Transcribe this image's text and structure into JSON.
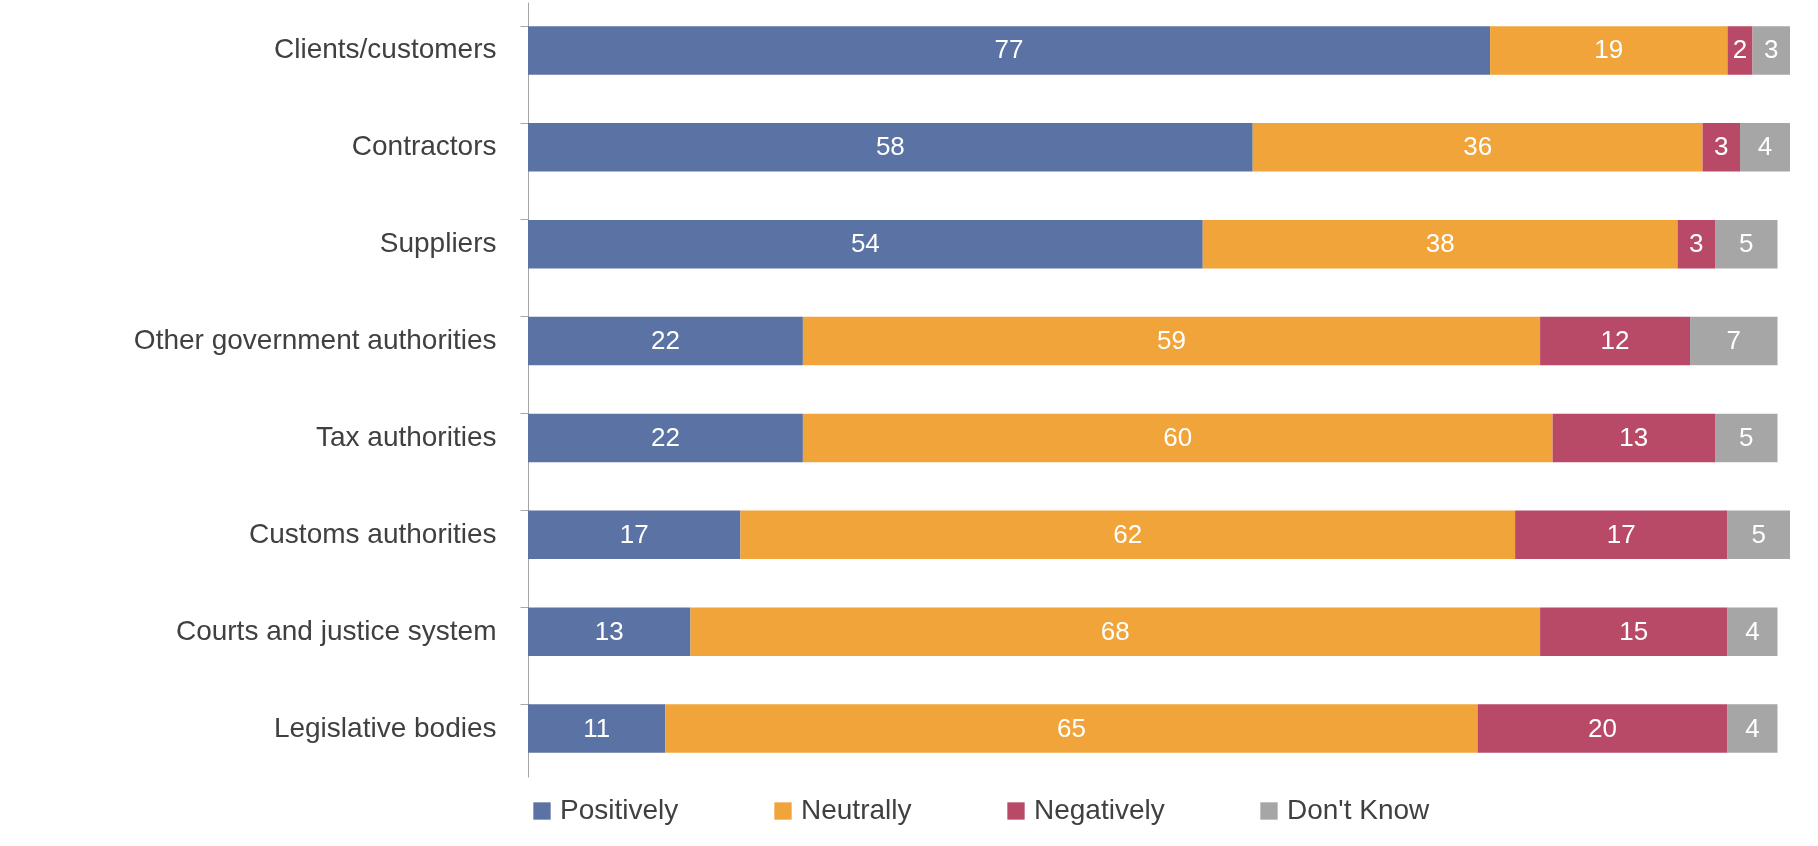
{
  "chart_data": {
    "type": "bar",
    "orientation": "horizontal",
    "stacked": true,
    "data_labels": true,
    "legend": "bottom",
    "categories": [
      "Clients/customers",
      "Contractors",
      "Suppliers",
      "Other government authorities",
      "Tax authorities",
      "Customs authorities",
      "Courts and justice system",
      "Legislative bodies"
    ],
    "series": [
      {
        "name": "Positively",
        "color": "#5b72a4",
        "values": [
          77,
          58,
          54,
          22,
          22,
          17,
          13,
          11
        ]
      },
      {
        "name": "Neutrally",
        "color": "#f0a43a",
        "values": [
          19,
          36,
          38,
          59,
          60,
          62,
          68,
          65
        ]
      },
      {
        "name": "Negatively",
        "color": "#b94a67",
        "values": [
          2,
          3,
          3,
          12,
          13,
          17,
          15,
          20
        ]
      },
      {
        "name": "Don't Know",
        "color": "#a6a6a6",
        "values": [
          3,
          4,
          5,
          7,
          5,
          5,
          4,
          4
        ]
      }
    ]
  }
}
